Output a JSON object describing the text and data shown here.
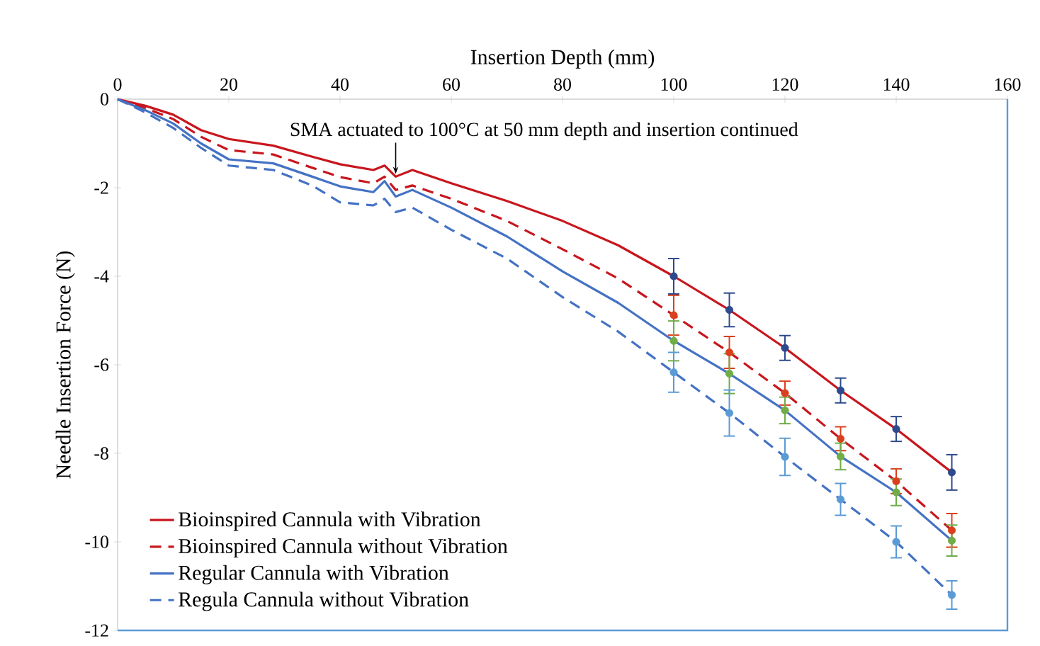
{
  "chart_data": {
    "type": "line",
    "xlabel": "Insertion Depth (mm)",
    "ylabel": "Needle Insertion Force (N)",
    "xlim": [
      0,
      160
    ],
    "xticks": [
      0,
      20,
      40,
      60,
      80,
      100,
      120,
      140,
      160
    ],
    "ylim": [
      -12,
      0
    ],
    "yticks": [
      -12,
      -10,
      -8,
      -6,
      -4,
      -2,
      0
    ],
    "legend": "bottom left",
    "annotations": [
      {
        "text": "SMA actuated to 100°C at 50 mm depth and insertion continued",
        "x": 50,
        "y": -1.7
      }
    ],
    "series": [
      {
        "name": "Bioinspired Cannula with Vibration",
        "line_style": "solid",
        "color": "#c8161d",
        "x": [
          0,
          5,
          10,
          15,
          20,
          28,
          35,
          40,
          46,
          48,
          50,
          53,
          60,
          70,
          80,
          90,
          100,
          110,
          120,
          130,
          140,
          150
        ],
        "values": [
          0,
          -0.15,
          -0.35,
          -0.7,
          -0.9,
          -1.05,
          -1.3,
          -1.47,
          -1.6,
          -1.5,
          -1.75,
          -1.6,
          -1.9,
          -2.3,
          -2.75,
          -3.3,
          -4.0,
          -4.76,
          -5.62,
          -6.58,
          -7.45,
          -8.43
        ]
      },
      {
        "name": "Bioinspired Cannula without Vibration",
        "line_style": "dashed",
        "color": "#c8161d",
        "x": [
          0,
          5,
          10,
          15,
          20,
          28,
          35,
          40,
          46,
          48,
          50,
          53,
          60,
          70,
          80,
          90,
          100,
          110,
          120,
          130,
          140,
          150
        ],
        "values": [
          0,
          -0.2,
          -0.45,
          -0.85,
          -1.15,
          -1.25,
          -1.55,
          -1.76,
          -1.9,
          -1.75,
          -2.05,
          -1.95,
          -2.25,
          -2.75,
          -3.39,
          -4.05,
          -4.88,
          -5.72,
          -6.64,
          -7.67,
          -8.63,
          -9.74
        ]
      },
      {
        "name": "Regular Cannula with Vibration",
        "line_style": "solid",
        "color": "#4472c4",
        "x": [
          0,
          5,
          10,
          15,
          20,
          28,
          35,
          40,
          46,
          48,
          50,
          53,
          60,
          70,
          80,
          90,
          100,
          110,
          120,
          130,
          140,
          150
        ],
        "values": [
          0,
          -0.25,
          -0.55,
          -1.0,
          -1.36,
          -1.45,
          -1.75,
          -1.97,
          -2.1,
          -1.85,
          -2.2,
          -2.05,
          -2.45,
          -3.1,
          -3.89,
          -4.6,
          -5.46,
          -6.2,
          -7.03,
          -8.07,
          -8.88,
          -9.97
        ]
      },
      {
        "name": "Regula Cannula without Vibration",
        "line_style": "dashed",
        "color": "#4472c4",
        "x": [
          0,
          5,
          10,
          15,
          20,
          28,
          35,
          40,
          46,
          48,
          50,
          53,
          60,
          70,
          80,
          90,
          100,
          110,
          120,
          130,
          140,
          150
        ],
        "values": [
          0,
          -0.3,
          -0.65,
          -1.1,
          -1.5,
          -1.6,
          -1.95,
          -2.33,
          -2.4,
          -2.25,
          -2.55,
          -2.45,
          -2.95,
          -3.6,
          -4.47,
          -5.25,
          -6.17,
          -7.09,
          -8.08,
          -9.04,
          -10.0,
          -11.2
        ]
      },
      {
        "type": "scatter",
        "marker": "circle",
        "color": "#2e4a8c",
        "x": [
          100,
          110,
          120,
          130,
          140,
          150
        ],
        "values": [
          -4.0,
          -4.76,
          -5.62,
          -6.58,
          -7.45,
          -8.43
        ],
        "errors": [
          0.4,
          0.38,
          0.28,
          0.28,
          0.28,
          0.4
        ]
      },
      {
        "type": "scatter",
        "marker": "circle",
        "color": "#d9411e",
        "x": [
          100,
          110,
          120,
          130,
          140,
          150
        ],
        "values": [
          -4.88,
          -5.72,
          -6.64,
          -7.67,
          -8.63,
          -9.74
        ],
        "errors": [
          0.45,
          0.36,
          0.27,
          0.27,
          0.28,
          0.38
        ]
      },
      {
        "type": "scatter",
        "marker": "circle",
        "color": "#70ad47",
        "x": [
          100,
          110,
          120,
          130,
          140,
          150
        ],
        "values": [
          -5.46,
          -6.2,
          -7.03,
          -8.07,
          -8.88,
          -9.97
        ],
        "errors": [
          0.45,
          0.45,
          0.3,
          0.3,
          0.3,
          0.35
        ]
      },
      {
        "type": "scatter",
        "marker": "circle",
        "color": "#5b9bd5",
        "x": [
          100,
          110,
          120,
          130,
          140,
          150
        ],
        "values": [
          -6.17,
          -7.09,
          -8.08,
          -9.04,
          -10.0,
          -11.2
        ],
        "errors": [
          0.45,
          0.52,
          0.42,
          0.36,
          0.36,
          0.32
        ]
      }
    ]
  }
}
